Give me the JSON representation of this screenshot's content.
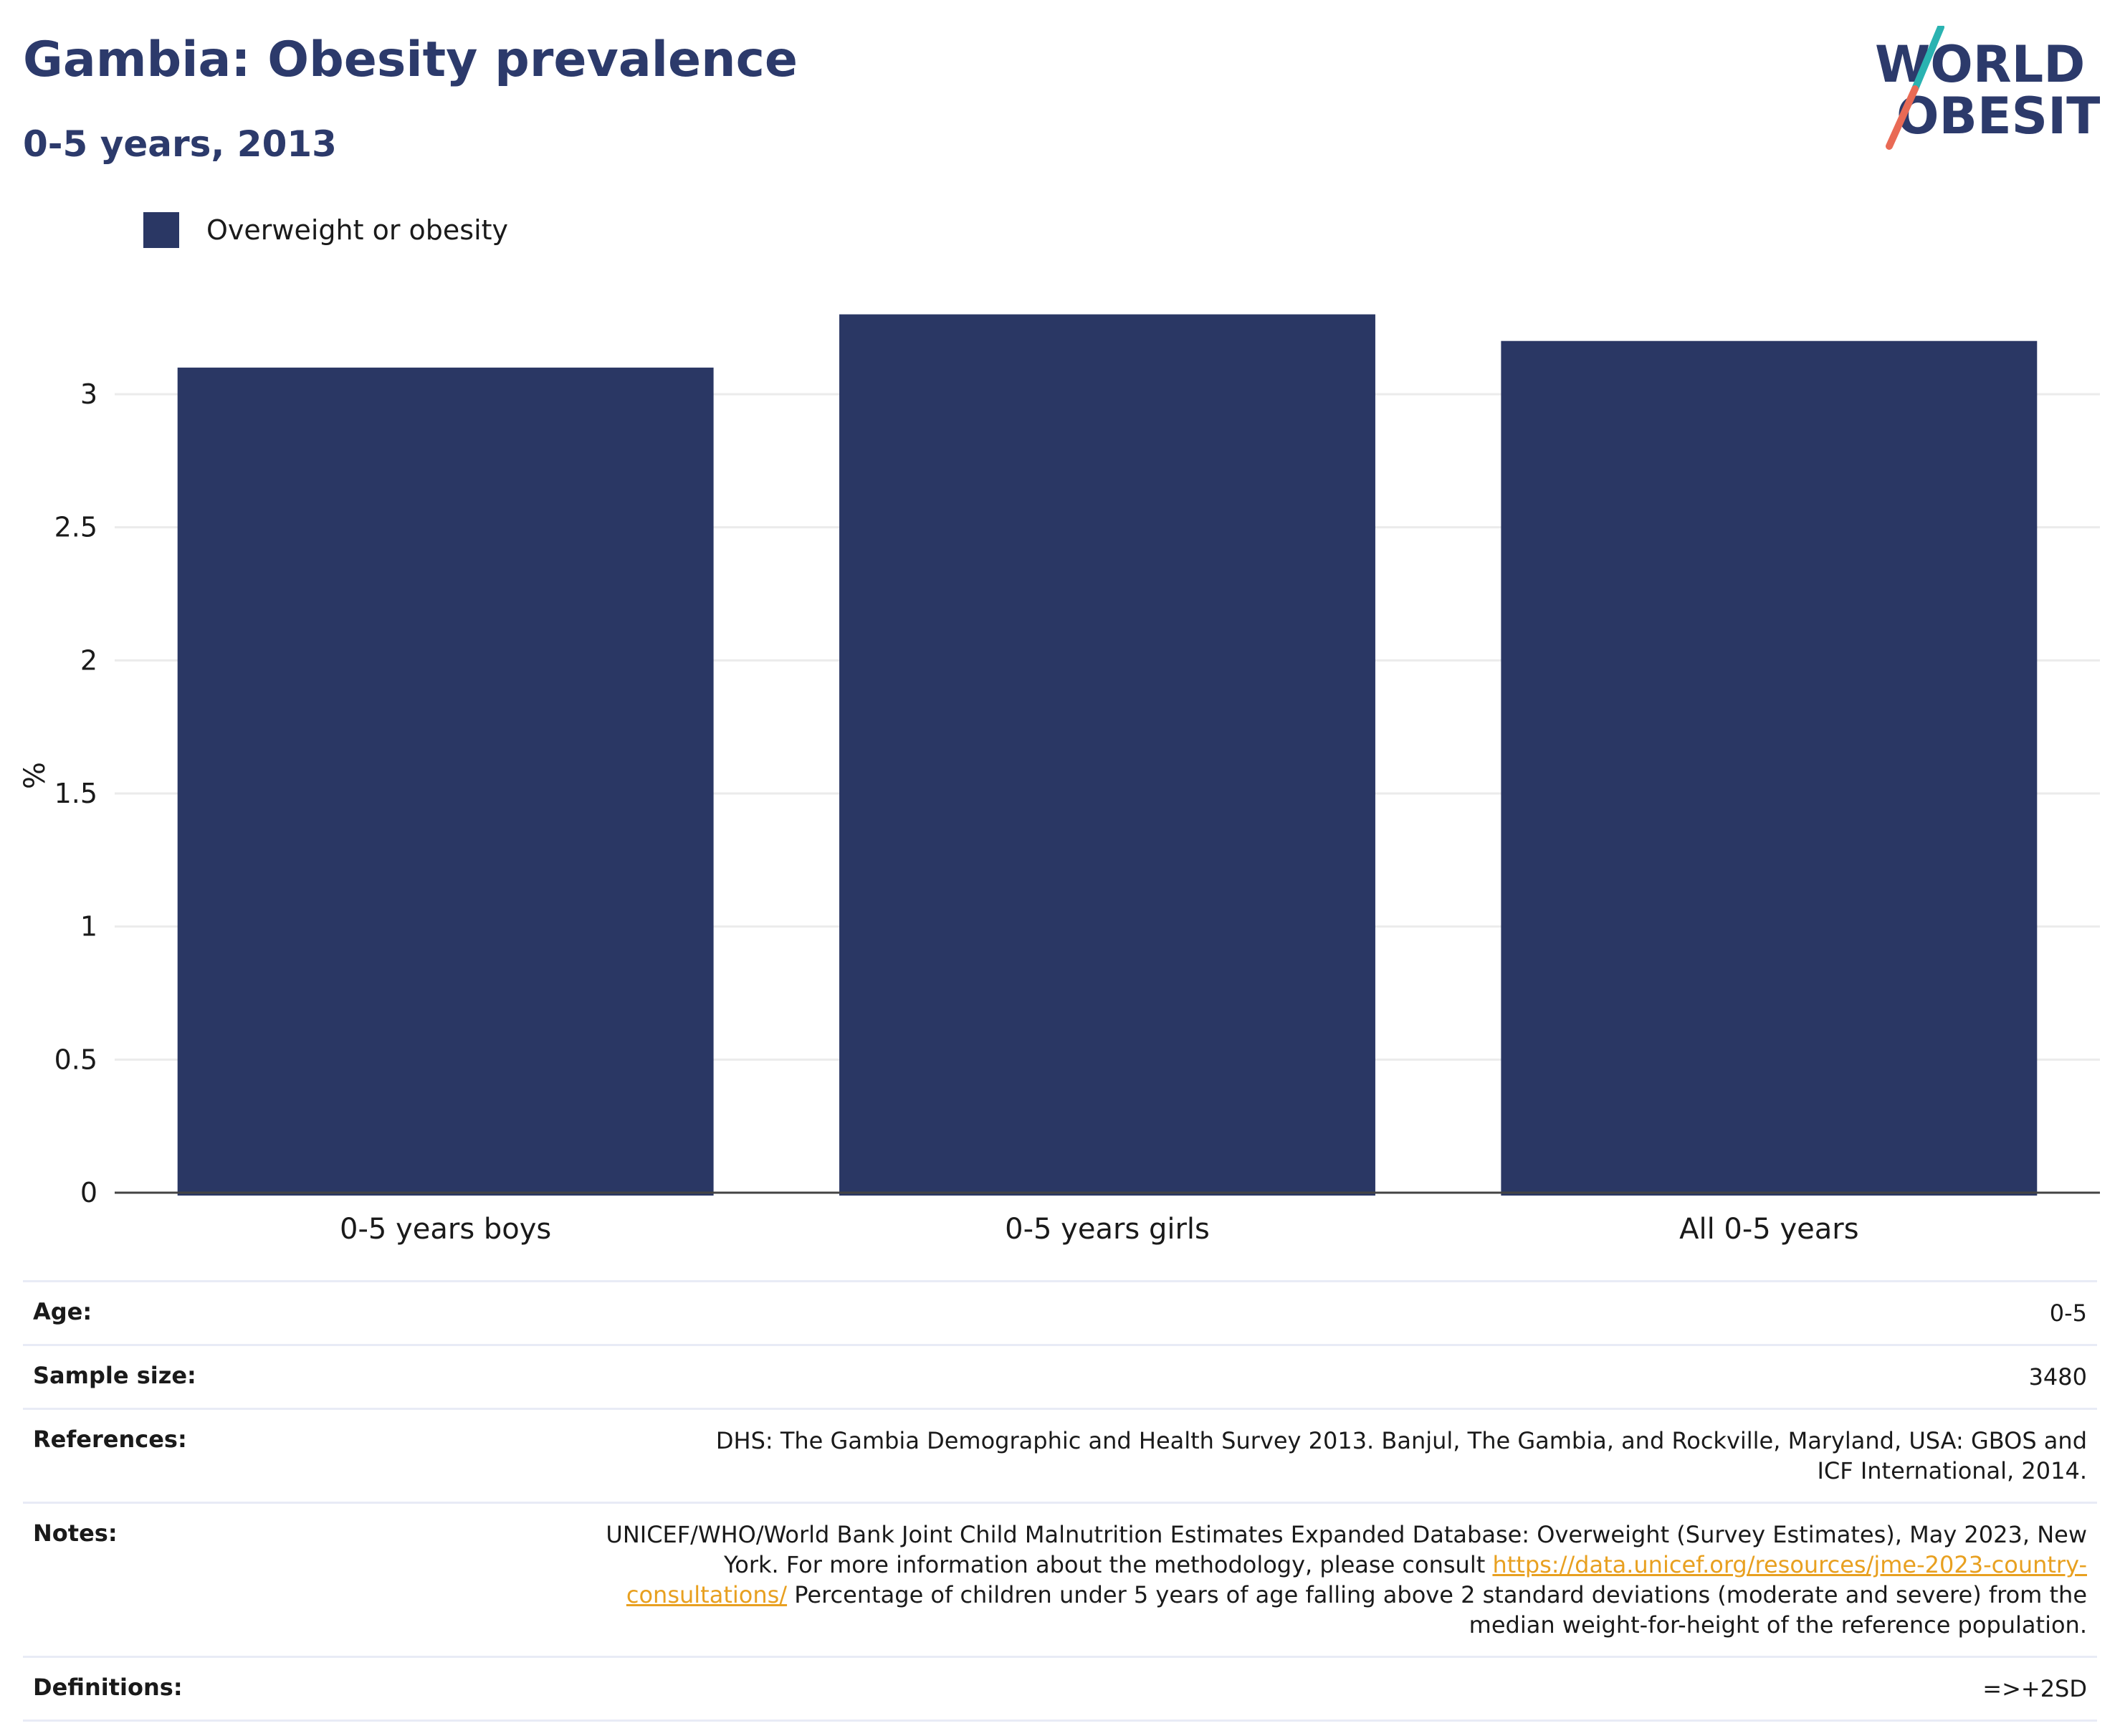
{
  "header": {
    "title": "Gambia: Obesity prevalence",
    "subtitle": "0-5 years, 2013"
  },
  "logo": {
    "text_line1": "WORLD",
    "text_line2": "OBESITY",
    "colors": {
      "text": "#2c3a6b",
      "slash_top": "#2ab3b1",
      "slash_bottom": "#e96a55"
    }
  },
  "legend": {
    "label": "Overweight or obesity",
    "color": "#2a3764"
  },
  "chart_data": {
    "type": "bar",
    "categories": [
      "0-5 years boys",
      "0-5 years girls",
      "All 0-5 years"
    ],
    "series": [
      {
        "name": "Overweight or obesity",
        "values": [
          3.1,
          3.3,
          3.2
        ]
      }
    ],
    "ylabel": "%",
    "ylim": [
      0,
      3.35
    ],
    "yticks": [
      0,
      0.5,
      1,
      1.5,
      2,
      2.5,
      3
    ],
    "ytick_labels": [
      "0",
      "0.5",
      "1",
      "1.5",
      "2",
      "2.5",
      "3"
    ],
    "grid": true,
    "bar_color": "#2a3764"
  },
  "info": {
    "age": {
      "label": "Age:",
      "value": "0-5"
    },
    "sample_size": {
      "label": "Sample size:",
      "value": "3480"
    },
    "references": {
      "label": "References:",
      "value": "DHS: The Gambia Demographic and Health Survey 2013. Banjul, The Gambia, and Rockville, Maryland, USA: GBOS and ICF International, 2014."
    },
    "notes": {
      "label": "Notes:",
      "text_before": "UNICEF/WHO/World Bank Joint Child Malnutrition Estimates Expanded Database: Overweight (Survey Estimates), May 2023, New York. For more information about the methodology, please consult ",
      "link": "https://data.unicef.org/resources/jme-2023-country-consultations/",
      "text_after": "Percentage of children under 5 years of age falling above 2 standard deviations (moderate and severe) from the median weight-for-height of the reference population."
    },
    "definitions": {
      "label": "Definitions:",
      "value": "=>+2SD"
    }
  }
}
